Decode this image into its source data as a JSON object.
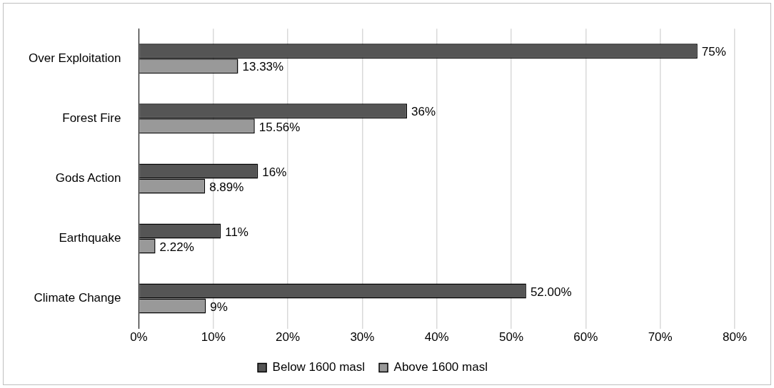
{
  "chart_data": {
    "type": "bar",
    "orientation": "horizontal",
    "categories": [
      "Over Exploitation",
      "Forest Fire",
      "Gods Action",
      "Earthquake",
      "Climate Change"
    ],
    "series": [
      {
        "name": "Below 1600 masl",
        "color": "#555555",
        "values": [
          75,
          36,
          16,
          11,
          52
        ],
        "value_labels": [
          "75%",
          "36%",
          "16%",
          "11%",
          "52.00%"
        ]
      },
      {
        "name": "Above 1600 masl",
        "color": "#999999",
        "values": [
          13.33,
          15.56,
          8.89,
          2.22,
          9
        ],
        "value_labels": [
          "13.33%",
          "15.56%",
          "8.89%",
          "2.22%",
          "9%"
        ]
      }
    ],
    "xlim": [
      0,
      80
    ],
    "xticks": [
      {
        "value": 0,
        "label": "0%"
      },
      {
        "value": 10,
        "label": "10%"
      },
      {
        "value": 20,
        "label": "20%"
      },
      {
        "value": 30,
        "label": "30%"
      },
      {
        "value": 40,
        "label": "40%"
      },
      {
        "value": 50,
        "label": "50%"
      },
      {
        "value": 60,
        "label": "60%"
      },
      {
        "value": 70,
        "label": "70%"
      },
      {
        "value": 80,
        "label": "80%"
      }
    ],
    "grid": "x",
    "legend": "bottom"
  }
}
